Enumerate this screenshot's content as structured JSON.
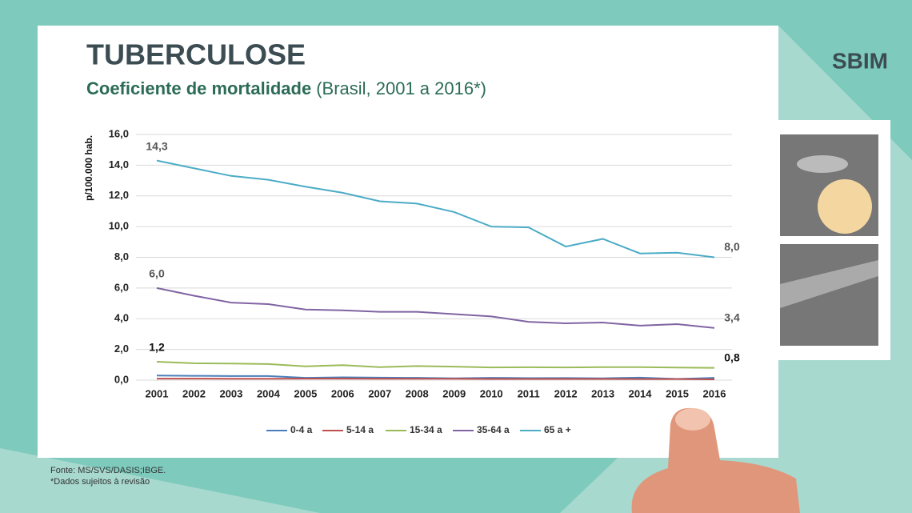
{
  "chart_data": {
    "type": "line",
    "title": "TUBERCULOSE",
    "subtitle": "Coeficiente de mortalidade",
    "subtitle_detail": "(Brasil, 2001 a 2016*)",
    "ylabel": "p/100.000  hab.",
    "logo": "SBIM",
    "notes": [
      "Fonte: MS/SVS/DASIS;IBGE.",
      "*Dados sujeitos à revisão"
    ],
    "categories": [
      "2001",
      "2002",
      "2003",
      "2004",
      "2005",
      "2006",
      "2007",
      "2008",
      "2009",
      "2010",
      "2011",
      "2012",
      "2013",
      "2014",
      "2015",
      "2016"
    ],
    "ylim": [
      0,
      16
    ],
    "yticks": [
      {
        "value": 0,
        "label": "0,0"
      },
      {
        "value": 2,
        "label": "2,0"
      },
      {
        "value": 4,
        "label": "4,0"
      },
      {
        "value": 6,
        "label": "6,0"
      },
      {
        "value": 8,
        "label": "8,0"
      },
      {
        "value": 10,
        "label": "10,0"
      },
      {
        "value": 12,
        "label": "12,0"
      },
      {
        "value": 14,
        "label": "14,0"
      },
      {
        "value": 16,
        "label": "16,0"
      }
    ],
    "grid": true,
    "legend": "bottom",
    "series": [
      {
        "name": "0-4 a",
        "color": "#4a7ebb",
        "values": [
          0.3,
          0.28,
          0.27,
          0.27,
          0.15,
          0.18,
          0.16,
          0.15,
          0.12,
          0.15,
          0.13,
          0.14,
          0.12,
          0.16,
          0.08,
          0.15
        ]
      },
      {
        "name": "5-14 a",
        "color": "#c0504d",
        "values": [
          0.1,
          0.1,
          0.09,
          0.09,
          0.1,
          0.1,
          0.09,
          0.09,
          0.09,
          0.08,
          0.08,
          0.08,
          0.08,
          0.07,
          0.07,
          0.05
        ]
      },
      {
        "name": "15-34 a",
        "color": "#9bbb59",
        "values": [
          1.2,
          1.1,
          1.08,
          1.05,
          0.9,
          0.98,
          0.85,
          0.92,
          0.88,
          0.83,
          0.84,
          0.83,
          0.85,
          0.85,
          0.82,
          0.8
        ],
        "value_labels": [
          "1,2",
          null,
          null,
          null,
          null,
          null,
          null,
          null,
          null,
          null,
          null,
          null,
          null,
          null,
          null,
          "0,8"
        ]
      },
      {
        "name": "35-64 a",
        "color": "#8064a2",
        "values": [
          6.0,
          5.5,
          5.05,
          4.95,
          4.6,
          4.55,
          4.45,
          4.45,
          4.3,
          4.15,
          3.8,
          3.7,
          3.75,
          3.55,
          3.65,
          3.4
        ],
        "value_labels": [
          "6,0",
          null,
          null,
          null,
          null,
          null,
          null,
          null,
          null,
          null,
          null,
          null,
          null,
          null,
          null,
          "3,4"
        ]
      },
      {
        "name": "65 a +",
        "color": "#4bacc6",
        "values": [
          14.3,
          13.8,
          13.3,
          13.05,
          12.6,
          12.2,
          11.65,
          11.5,
          10.95,
          10.0,
          9.95,
          8.7,
          9.2,
          8.25,
          8.3,
          8.0
        ],
        "value_labels": [
          "14,3",
          null,
          null,
          null,
          null,
          null,
          null,
          null,
          null,
          null,
          null,
          null,
          null,
          null,
          null,
          "8,0"
        ]
      }
    ]
  }
}
